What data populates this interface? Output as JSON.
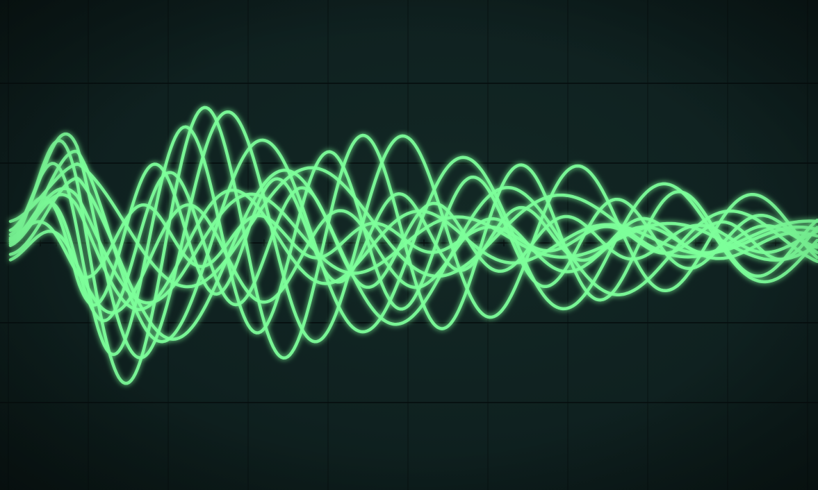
{
  "scene": {
    "subject": "oscilloscope-screen",
    "trace_color": "#7dff9a",
    "trace_glow_color": "#3cf07a",
    "graticule_color": "#071010",
    "background_color": "#102220"
  },
  "graticule": {
    "major_divisions_x": 10,
    "major_divisions_y": 6,
    "minor_ticks_per_division": 5
  },
  "traces": [
    {
      "amp": 0.62,
      "cycles": 4.0,
      "phase": 0.0,
      "offset": 0.0,
      "growth": 0.1
    },
    {
      "amp": 0.8,
      "cycles": 4.6,
      "phase": 0.3,
      "offset": 0.05,
      "growth": 0.05
    },
    {
      "amp": 0.95,
      "cycles": 5.1,
      "phase": 0.55,
      "offset": 0.0,
      "growth": 0.0
    },
    {
      "amp": 0.55,
      "cycles": 3.6,
      "phase": 0.15,
      "offset": -0.08,
      "growth": 0.15
    },
    {
      "amp": 0.88,
      "cycles": 5.6,
      "phase": 0.8,
      "offset": 0.03,
      "growth": 0.02
    },
    {
      "amp": 0.7,
      "cycles": 6.1,
      "phase": 1.1,
      "offset": -0.03,
      "growth": 0.08
    },
    {
      "amp": 0.45,
      "cycles": 3.2,
      "phase": 0.4,
      "offset": 0.1,
      "growth": 0.2
    },
    {
      "amp": 0.75,
      "cycles": 4.3,
      "phase": 1.35,
      "offset": -0.05,
      "growth": 0.06
    },
    {
      "amp": 0.58,
      "cycles": 6.6,
      "phase": 0.95,
      "offset": 0.06,
      "growth": 0.03
    },
    {
      "amp": 0.92,
      "cycles": 3.9,
      "phase": 1.6,
      "offset": -0.02,
      "growth": 0.04
    },
    {
      "amp": 0.4,
      "cycles": 5.3,
      "phase": 0.65,
      "offset": -0.12,
      "growth": 0.12
    },
    {
      "amp": 0.66,
      "cycles": 7.0,
      "phase": 1.85,
      "offset": 0.02,
      "growth": 0.05
    }
  ]
}
